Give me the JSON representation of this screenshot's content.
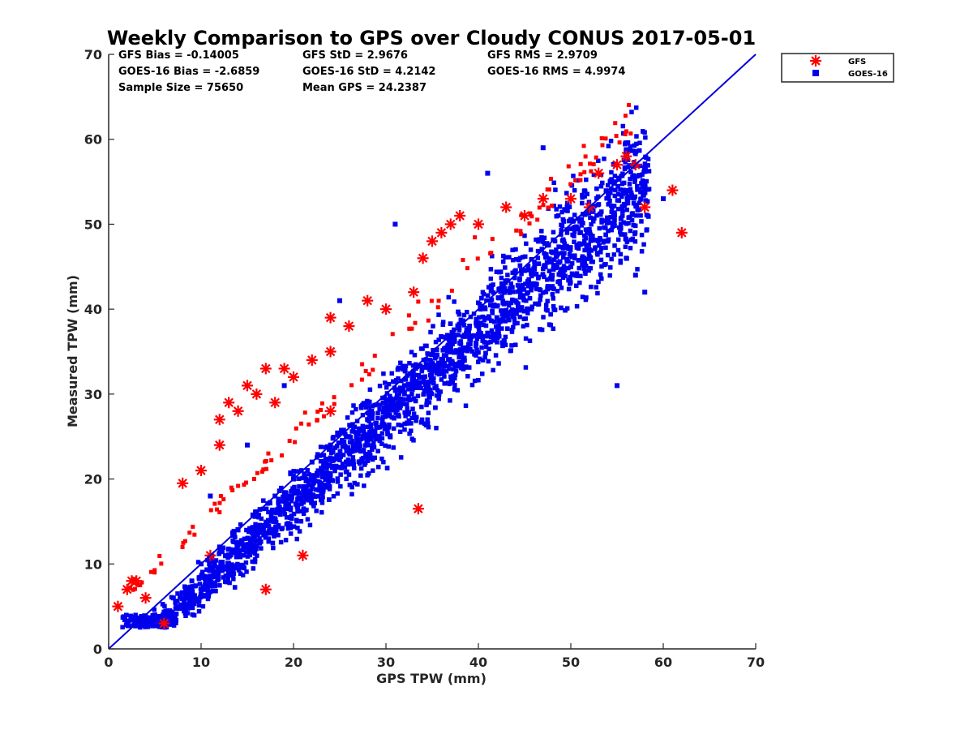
{
  "chart_data": {
    "type": "scatter",
    "title": "Weekly Comparison to GPS over Cloudy CONUS 2017-05-01",
    "xlabel": "GPS TPW (mm)",
    "ylabel": "Measured TPW (mm)",
    "xlim": [
      0,
      70
    ],
    "ylim": [
      0,
      70
    ],
    "xticks": [
      "0",
      "10",
      "20",
      "30",
      "40",
      "50",
      "60",
      "70"
    ],
    "yticks": [
      "0",
      "10",
      "20",
      "30",
      "40",
      "50",
      "60",
      "70"
    ],
    "grid": false,
    "legend_position": "outside top-right",
    "stats": [
      "GFS Bias = -0.14005",
      "GFS StD = 2.9676",
      "GFS RMS = 2.9709",
      "GOES-16 Bias = -2.6859",
      "GOES-16 StD = 4.2142",
      "GOES-16 RMS = 4.9974",
      "Sample Size = 75650",
      "Mean GPS = 24.2387"
    ],
    "reference_line": {
      "x": [
        0,
        70
      ],
      "y": [
        0,
        70
      ],
      "color": "#0000dd"
    },
    "series": [
      {
        "name": "GFS",
        "marker": "asterisk",
        "color": "#ff0000",
        "x": [
          1,
          2,
          2.5,
          3,
          4,
          6,
          8,
          10,
          12,
          13,
          14,
          15,
          16,
          17,
          18,
          19,
          20,
          22,
          24,
          24,
          26,
          28,
          30,
          33,
          34,
          35,
          36,
          37,
          38,
          40,
          43,
          45,
          47,
          50,
          52,
          53,
          55,
          56,
          57,
          58,
          61,
          62,
          12,
          17,
          24,
          33.5,
          21,
          11
        ],
        "y": [
          5,
          7,
          8,
          8,
          6,
          3,
          19.5,
          21,
          27,
          29,
          28,
          31,
          30,
          33,
          29,
          33,
          32,
          34,
          39,
          35,
          38,
          41,
          40,
          42,
          46,
          48,
          49,
          50,
          51,
          50,
          52,
          51,
          53,
          53,
          52,
          56,
          57,
          58,
          57,
          52,
          54,
          49,
          24,
          7,
          28,
          16.5,
          11,
          11
        ]
      },
      {
        "name": "GOES-16",
        "marker": "square",
        "color": "#0000ee",
        "x": [
          2,
          3,
          5,
          7,
          9,
          10,
          12,
          14,
          16,
          18,
          20,
          22,
          24,
          26,
          28,
          30,
          32,
          34,
          36,
          38,
          40,
          42,
          44,
          46,
          48,
          50,
          52,
          54,
          56,
          57,
          58,
          60,
          41,
          31,
          25,
          19,
          15,
          11,
          47,
          55
        ],
        "y": [
          3,
          3,
          4,
          6,
          8,
          10,
          12,
          14,
          16,
          18,
          20,
          22,
          24,
          25,
          27,
          29,
          31,
          32,
          34,
          36,
          38,
          39,
          41,
          43,
          44,
          45,
          47,
          48,
          46,
          44,
          42,
          53,
          56,
          50,
          41,
          31,
          24,
          18,
          59,
          31
        ]
      }
    ]
  }
}
